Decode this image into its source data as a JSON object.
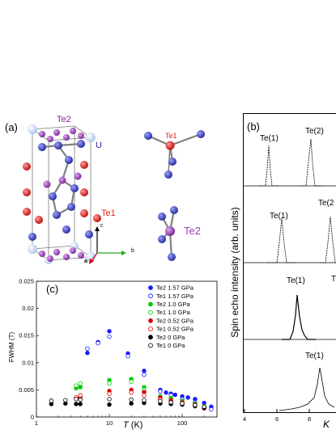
{
  "panel_a": {
    "label": "(a)",
    "atom_labels": {
      "te2_top": "Te2",
      "u": "U",
      "te1": "Te1",
      "te1_cluster": "Te1",
      "te2_cluster": "Te2"
    },
    "axes": {
      "c": "c",
      "b": "b",
      "a": "a"
    },
    "colors": {
      "u": "#3a3fc4",
      "te1": "#e02020",
      "te2": "#9a3fb8",
      "bond": "#808080"
    }
  },
  "panel_b": {
    "label": "(b)",
    "ylabel": "Spin echo intensity (arb. units)",
    "xlabel": "K",
    "x_ticks": [
      "4",
      "6",
      "8"
    ],
    "spectra": [
      {
        "peaks": [
          {
            "label": "Te(1)"
          },
          {
            "label": "Te(2)"
          }
        ]
      },
      {
        "peaks": [
          {
            "label": "Te(1)"
          },
          {
            "label": "Te(2"
          }
        ]
      },
      {
        "peaks": [
          {
            "label": "Te(1)"
          },
          {
            "label": "T"
          }
        ]
      },
      {
        "peaks": [
          {
            "label": "Te(1)"
          }
        ]
      }
    ]
  },
  "panel_c": {
    "label": "(c)"
  },
  "chart_data": {
    "type": "scatter",
    "title": "",
    "xlabel": "T (K)",
    "xlabel_italic": "T",
    "xlabel_unit": "(K)",
    "ylabel": "FWHM (T)",
    "xscale": "log",
    "xlim": [
      1,
      300
    ],
    "ylim": [
      0,
      0.025
    ],
    "x_ticks": [
      1,
      10,
      100
    ],
    "x_tick_labels": [
      "1",
      "10",
      "100"
    ],
    "y_ticks": [
      0,
      0.005,
      0.01,
      0.015,
      0.02,
      0.025
    ],
    "y_tick_labels": [
      "0",
      "0.005",
      "0.01",
      "0.015",
      "0.02",
      "0.025"
    ],
    "legend_position": "top-right",
    "series": [
      {
        "name": "Te2  1.57 GPa",
        "color": "#1a1aff",
        "filled": true,
        "x": [
          5,
          7,
          10,
          18,
          30,
          50,
          60,
          70,
          80,
          100,
          120,
          150,
          200,
          250
        ],
        "y": [
          0.0118,
          0.0138,
          0.0158,
          0.0117,
          0.0085,
          0.005,
          0.0045,
          0.0043,
          0.0041,
          0.0038,
          0.0036,
          0.0033,
          0.0026,
          0.0019
        ]
      },
      {
        "name": "Te1  1.57 GPa",
        "color": "#1a1aff",
        "filled": false,
        "x": [
          5,
          7,
          10,
          18,
          30,
          50,
          70,
          100,
          150,
          200,
          250
        ],
        "y": [
          0.0126,
          0.0136,
          0.0148,
          0.0112,
          0.0078,
          0.0047,
          0.004,
          0.0033,
          0.0027,
          0.002,
          0.0014
        ]
      },
      {
        "name": "Te2  1.0 GPa",
        "color": "#00cc00",
        "filled": true,
        "x": [
          3.5,
          4,
          10,
          20,
          30,
          50,
          70,
          100,
          150,
          200
        ],
        "y": [
          0.0053,
          0.0055,
          0.0068,
          0.007,
          0.0055,
          0.0038,
          0.0035,
          0.003,
          0.0025,
          0.002
        ]
      },
      {
        "name": "Te1  1.0 GPa",
        "color": "#00cc00",
        "filled": false,
        "x": [
          3.5,
          4,
          10,
          20,
          30,
          50,
          70,
          100,
          150,
          200
        ],
        "y": [
          0.0058,
          0.0062,
          0.0062,
          0.0065,
          0.005,
          0.0035,
          0.0031,
          0.0028,
          0.0023,
          0.0018
        ]
      },
      {
        "name": "Te2  0.52 GPa",
        "color": "#e00000",
        "filled": true,
        "x": [
          3.5,
          4,
          10,
          20,
          30,
          50,
          70,
          100,
          150,
          200
        ],
        "y": [
          0.0035,
          0.0036,
          0.0048,
          0.005,
          0.0046,
          0.0036,
          0.0031,
          0.0027,
          0.0023,
          0.0018
        ]
      },
      {
        "name": "Te1  0.52 GPa",
        "color": "#e00000",
        "filled": false,
        "x": [
          3.5,
          4,
          10,
          20,
          30,
          50,
          70,
          100,
          150,
          200
        ],
        "y": [
          0.0036,
          0.004,
          0.0043,
          0.0045,
          0.004,
          0.0032,
          0.0028,
          0.0025,
          0.0021,
          0.0016
        ]
      },
      {
        "name": "Te2  0 GPa",
        "color": "#000000",
        "filled": true,
        "x": [
          1.6,
          2.5,
          3.5,
          4,
          10,
          20,
          30,
          50,
          70,
          100,
          150,
          200
        ],
        "y": [
          0.0024,
          0.0025,
          0.0024,
          0.0024,
          0.0023,
          0.0025,
          0.0026,
          0.0025,
          0.0024,
          0.0023,
          0.002,
          0.0017
        ]
      },
      {
        "name": "Te1  0 GPa",
        "color": "#000000",
        "filled": false,
        "x": [
          1.6,
          2.5,
          3.5,
          4,
          10,
          20,
          30,
          50,
          70,
          100,
          150,
          200
        ],
        "y": [
          0.003,
          0.0031,
          0.0033,
          0.0032,
          0.0033,
          0.0032,
          0.0031,
          0.0029,
          0.0027,
          0.0025,
          0.0022,
          0.0019
        ]
      }
    ]
  }
}
